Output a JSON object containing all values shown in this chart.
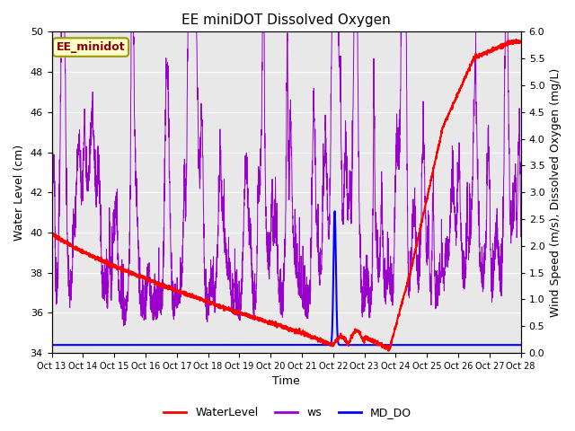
{
  "title": "EE miniDOT Dissolved Oxygen",
  "xlabel": "Time",
  "ylabel_left": "Water Level (cm)",
  "ylabel_right": "Wind Speed (m/s), Dissolved Oxygen (mg/L)",
  "legend_label": "EE_minidot",
  "ylim_left": [
    34,
    50
  ],
  "ylim_right": [
    0.0,
    6.0
  ],
  "xlim": [
    0,
    15
  ],
  "xtick_labels": [
    "Oct 13",
    "Oct 14",
    "Oct 15",
    "Oct 16",
    "Oct 17",
    "Oct 18",
    "Oct 19",
    "Oct 20",
    "Oct 21",
    "Oct 22",
    "Oct 23",
    "Oct 24",
    "Oct 25",
    "Oct 26",
    "Oct 27",
    "Oct 28"
  ],
  "bg_color": "#e8e8e8",
  "wl_color": "#ff0000",
  "ws_color": "#9900cc",
  "do_color": "#0000ff",
  "title_fontsize": 11,
  "axis_fontsize": 9,
  "tick_fontsize": 8,
  "legend_fontsize": 9,
  "label_fontsize": 9,
  "yticks_left": [
    34,
    36,
    38,
    40,
    42,
    44,
    46,
    48,
    50
  ],
  "yticks_right": [
    0.0,
    0.5,
    1.0,
    1.5,
    2.0,
    2.5,
    3.0,
    3.5,
    4.0,
    4.5,
    5.0,
    5.5,
    6.0
  ]
}
